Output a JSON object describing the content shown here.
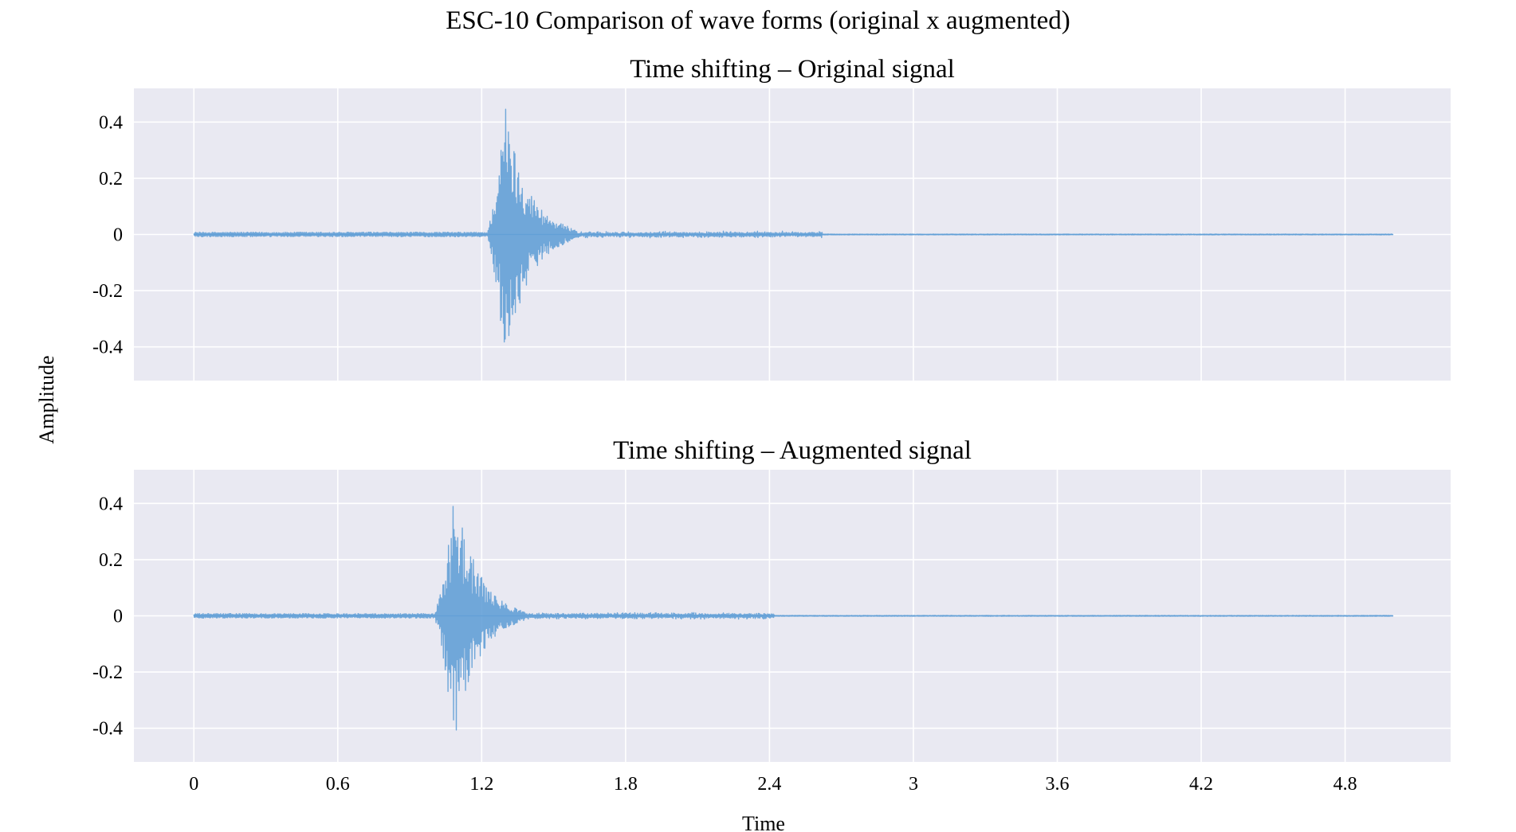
{
  "figure": {
    "title": "ESC-10 Comparison of wave forms (original x augmented)",
    "xlabel": "Time",
    "ylabel": "Amplitude"
  },
  "colors": {
    "wave": "#5b9bd5",
    "axes_bg": "#e9e9f2",
    "grid": "#ffffff"
  },
  "chart_data": [
    {
      "type": "line",
      "title": "Time shifting – Original signal",
      "xlim": [
        -0.25,
        5.24
      ],
      "ylim": [
        -0.52,
        0.52
      ],
      "xticks": [
        0,
        0.6,
        1.2,
        1.8,
        2.4,
        3,
        3.6,
        4.2,
        4.8
      ],
      "xtick_labels": [
        "0",
        "0.6",
        "1.2",
        "1.8",
        "2.4",
        "3",
        "3.6",
        "4.2",
        "4.8"
      ],
      "yticks": [
        0.4,
        0.2,
        0,
        -0.2,
        -0.4
      ],
      "ytick_labels": [
        "0.4",
        "0.2",
        "0",
        "-0.2",
        "-0.4"
      ],
      "show_xtick_labels": false,
      "grid": true,
      "series": [
        {
          "duration": 5.0,
          "onset": 1.22,
          "peak_time": 1.3,
          "peak_amplitude": 0.46,
          "trough_amplitude": -0.46,
          "decay_end": 1.6,
          "noise_end": 2.62,
          "noise_amplitude": 0.008
        }
      ]
    },
    {
      "type": "line",
      "title": "Time shifting – Augmented signal",
      "xlim": [
        -0.25,
        5.24
      ],
      "ylim": [
        -0.52,
        0.52
      ],
      "xticks": [
        0,
        0.6,
        1.2,
        1.8,
        2.4,
        3,
        3.6,
        4.2,
        4.8
      ],
      "xtick_labels": [
        "0",
        "0.6",
        "1.2",
        "1.8",
        "2.4",
        "3",
        "3.6",
        "4.2",
        "4.8"
      ],
      "yticks": [
        0.4,
        0.2,
        0,
        -0.2,
        -0.4
      ],
      "ytick_labels": [
        "0.4",
        "0.2",
        "0",
        "-0.2",
        "-0.4"
      ],
      "show_xtick_labels": true,
      "grid": true,
      "series": [
        {
          "duration": 5.0,
          "onset": 1.0,
          "peak_time": 1.09,
          "peak_amplitude": 0.46,
          "trough_amplitude": -0.46,
          "decay_end": 1.38,
          "noise_end": 2.42,
          "noise_amplitude": 0.008
        }
      ]
    }
  ]
}
